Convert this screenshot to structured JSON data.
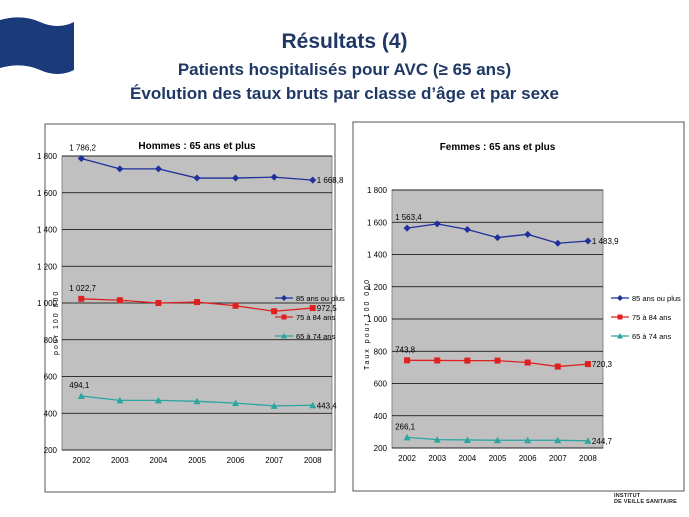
{
  "slide": {
    "title": "Résultats (4)",
    "subtitle1": "Patients hospitalisés pour AVC (≥ 65 ans)",
    "subtitle2": "Évolution des taux bruts par classe d’âge et par sexe",
    "logo_line1": "INSTITUT",
    "logo_line2": "DE VEILLE SANITAIRE"
  },
  "colors": {
    "title": "#1f3864",
    "flag": "#1b3a7a",
    "plot_bg": "#c0c0c0",
    "series_85": "#1f2f9c",
    "series_75": "#e02020",
    "series_65": "#2aa5a0"
  },
  "chart_data": [
    {
      "type": "line",
      "title": "Hommes : 65 ans et plus",
      "ylabel": "pour 100 000",
      "x": [
        "2002",
        "2003",
        "2004",
        "2005",
        "2006",
        "2007",
        "2008"
      ],
      "ylim": [
        200,
        1800
      ],
      "yticks": [
        200,
        400,
        600,
        800,
        1000,
        1200,
        1400,
        1600,
        1800
      ],
      "ytick_labels": [
        "200",
        "400",
        "600",
        "800",
        "1 000",
        "1 200",
        "1 400",
        "1 600",
        "1 800"
      ],
      "grid": true,
      "legend": "right",
      "series": [
        {
          "name": "85 ans ou plus",
          "color": "#1f2f9c",
          "marker": "diamond",
          "values": [
            1786.2,
            1730,
            1730,
            1680,
            1680,
            1685,
            1668.8
          ],
          "labels": [
            {
              "index": 0,
              "text": "1 786,2"
            },
            {
              "index": 6,
              "text": "1 668,8"
            }
          ]
        },
        {
          "name": "75 à 84 ans",
          "color": "#e02020",
          "marker": "square",
          "values": [
            1022.7,
            1015,
            1000,
            1005,
            985,
            955,
            972.5
          ],
          "labels": [
            {
              "index": 0,
              "text": "1 022,7"
            },
            {
              "index": 6,
              "text": "972,5"
            }
          ]
        },
        {
          "name": "65 à 74 ans",
          "color": "#2aa5a0",
          "marker": "triangle",
          "values": [
            494.1,
            470,
            470,
            465,
            455,
            440,
            443.4
          ],
          "labels": [
            {
              "index": 0,
              "text": "494,1"
            },
            {
              "index": 6,
              "text": "443,4"
            }
          ]
        }
      ]
    },
    {
      "type": "line",
      "title": "Femmes : 65 ans et plus",
      "ylabel": "Taux pour 100 000",
      "x": [
        "2002",
        "2003",
        "2004",
        "2005",
        "2006",
        "2007",
        "2008"
      ],
      "ylim": [
        200,
        1800
      ],
      "yticks": [
        200,
        400,
        600,
        800,
        1000,
        1200,
        1400,
        1600,
        1800
      ],
      "ytick_labels": [
        "200",
        "400",
        "600",
        "800",
        "1 000",
        "1 200",
        "1 400",
        "1 600",
        "1 800"
      ],
      "grid": true,
      "legend": "right",
      "series": [
        {
          "name": "85 ans ou plus",
          "color": "#1f2f9c",
          "marker": "diamond",
          "values": [
            1563.4,
            1590,
            1555,
            1505,
            1525,
            1470,
            1483.9
          ],
          "labels": [
            {
              "index": 0,
              "text": "1 563,4"
            },
            {
              "index": 6,
              "text": "1 483,9"
            }
          ]
        },
        {
          "name": "75 à 84 ans",
          "color": "#e02020",
          "marker": "square",
          "values": [
            743.8,
            743,
            742,
            742,
            730,
            705,
            720.3
          ],
          "labels": [
            {
              "index": 0,
              "text": "743,8"
            },
            {
              "index": 6,
              "text": "720,3"
            }
          ]
        },
        {
          "name": "65 à 74 ans",
          "color": "#2aa5a0",
          "marker": "triangle",
          "values": [
            266.1,
            252,
            250,
            248,
            248,
            248,
            244.7
          ],
          "labels": [
            {
              "index": 0,
              "text": "266,1"
            },
            {
              "index": 6,
              "text": "244,7"
            }
          ]
        }
      ]
    }
  ]
}
